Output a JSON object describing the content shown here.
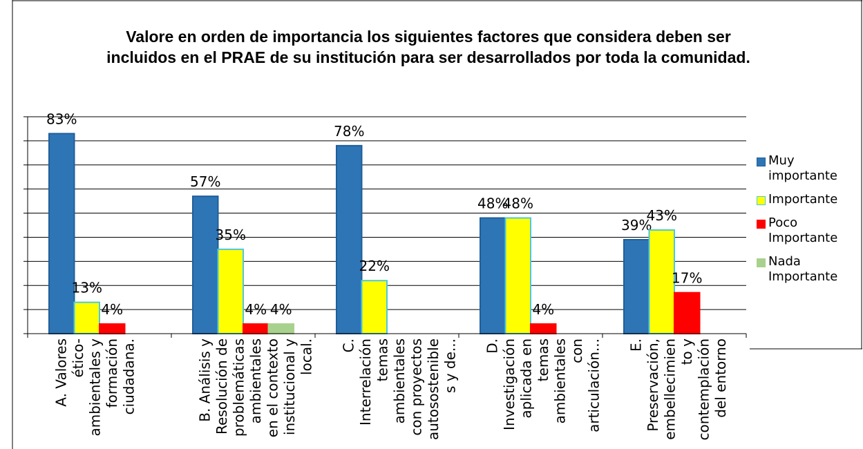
{
  "chart_data": {
    "type": "bar",
    "title": "Valore en orden de importancia los siguientes factores que considera deben ser incluidos en el PRAE de su institución para ser desarrollados por toda la comunidad.",
    "categories": [
      [
        "A. Valores",
        "ético-",
        "ambientales y",
        "formación",
        "ciudadana."
      ],
      [
        "B. Análisis y",
        "Resolución de",
        "problemáticas",
        "ambientales",
        "en el contexto",
        "institucional y",
        "local."
      ],
      [
        "C.",
        "Interrelación",
        "temas",
        "ambientales",
        "con proyectos",
        "autosostenible",
        "s  y de..."
      ],
      [
        "D.",
        "Investigación",
        "aplicada en",
        "temas",
        "ambientales",
        "con",
        "articulación..."
      ],
      [
        "E.",
        "Preservación,",
        "embellecimien",
        "to y",
        "contemplación",
        "del entorno"
      ]
    ],
    "series": [
      {
        "name": "Muy importante",
        "color": "#2e75b6",
        "stroke": "#1f5f99",
        "values": [
          83,
          57,
          78,
          48,
          39
        ],
        "value_labels": [
          "83%",
          "57%",
          "78%",
          "48%",
          "39%"
        ]
      },
      {
        "name": "Importante",
        "color": "#ffff00",
        "stroke": "#4bc7e0",
        "values": [
          13,
          35,
          22,
          48,
          43
        ],
        "value_labels": [
          "13%",
          "35%",
          "22%",
          "48%",
          "43%"
        ]
      },
      {
        "name": "Poco Importante",
        "color": "#ff0000",
        "stroke": "#ff0000",
        "values": [
          4,
          4,
          null,
          4,
          17
        ],
        "value_labels": [
          "4%",
          "4%",
          null,
          "4%",
          "17%"
        ]
      },
      {
        "name": "Nada Importante",
        "color": "#a9d18e",
        "stroke": "#a9d18e",
        "values": [
          null,
          4,
          null,
          null,
          null
        ],
        "value_labels": [
          null,
          "4%",
          null,
          null,
          null
        ]
      }
    ],
    "ylim": [
      0,
      90
    ],
    "yticks": [
      0,
      10,
      20,
      30,
      40,
      50,
      60,
      70,
      80,
      90
    ],
    "grid": true,
    "legend": "right"
  }
}
